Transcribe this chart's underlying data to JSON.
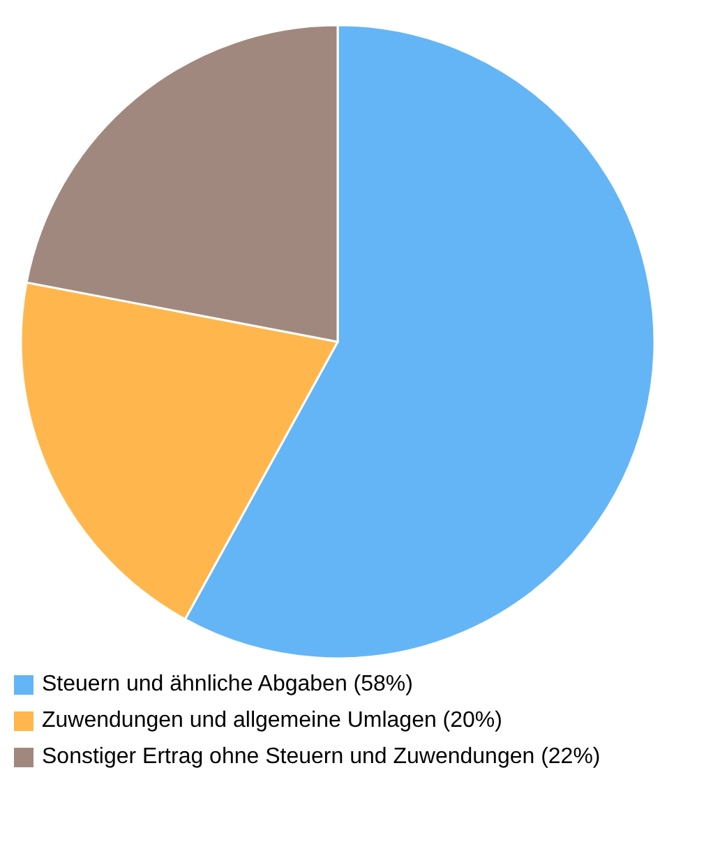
{
  "chart_data": {
    "type": "pie",
    "categories": [
      "Steuern und ähnliche Abgaben (58%)",
      "Zuwendungen und allgemeine Umlagen (20%)",
      "Sonstiger Ertrag ohne Steuern und Zuwendungen (22%)"
    ],
    "values": [
      58,
      20,
      22
    ],
    "colors": [
      "#64b5f6",
      "#ffb74d",
      "#a1887f"
    ],
    "legend": "bottom"
  }
}
